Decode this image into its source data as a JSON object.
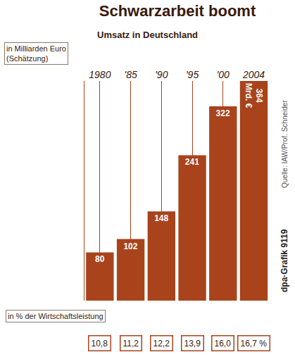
{
  "chart_data": {
    "type": "bar",
    "title": "Schwarzarbeit boomt",
    "subtitle": "Umsatz in Deutschland",
    "y_label": "in Milliarden Euro (Schätzung)",
    "categories": [
      "1980",
      "'85",
      "'90",
      "'95",
      "'00",
      "2004"
    ],
    "values": [
      80,
      102,
      148,
      241,
      322,
      364
    ],
    "value_labels": [
      "80",
      "102",
      "148",
      "241",
      "322",
      "364 Mrd. €"
    ],
    "data_labels": true,
    "color": "#a8431c",
    "ylim": [
      0,
      364
    ],
    "yticks": [],
    "tick_labels": "x",
    "grid": true,
    "shares": {
      "label": "in % der Wirtschaftsleistung",
      "values": [
        10.8,
        11.2,
        12.2,
        13.9,
        16.0,
        16.7
      ],
      "value_labels": [
        "10,8",
        "11,2",
        "12,2",
        "13,9",
        "16,0",
        "16,7 %"
      ]
    },
    "annotations": [
      "Quelle: IAW/Prof. Schneider",
      "dpa·Grafik 9119"
    ]
  }
}
